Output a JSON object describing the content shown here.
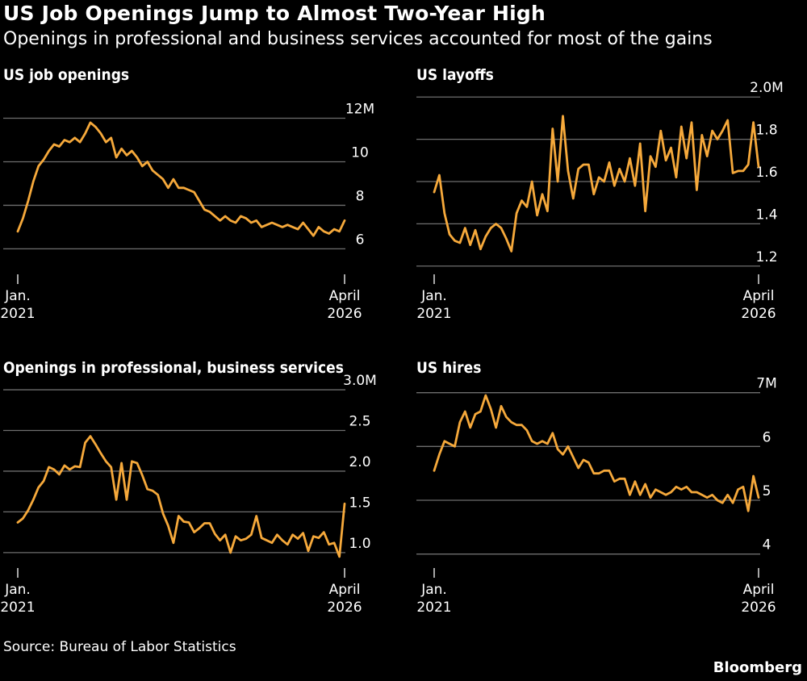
{
  "header": {
    "title": "US Job Openings Jump to Almost Two-Year High",
    "subtitle": "Openings in professional and business services accounted for most of the gains"
  },
  "footer": {
    "source": "Source: Bureau of Labor Statistics",
    "brand": "Bloomberg"
  },
  "colors": {
    "line": "#f6a93b",
    "grid": "#6e6e6e",
    "background": "#000000",
    "text": "#ffffff"
  },
  "chart_data": [
    {
      "type": "line",
      "title": "US job openings",
      "ylim": [
        5.2,
        12.5
      ],
      "yticks": [
        6,
        8,
        10,
        12
      ],
      "ytick_labels": [
        "6",
        "8",
        "10",
        "12M"
      ],
      "xtick_labels": [
        {
          "line1": "Jan.",
          "line2": "2021"
        },
        {
          "line1": "April",
          "line2": "2026"
        }
      ],
      "x_range": [
        "2021-01",
        "2026-04"
      ],
      "series": [
        {
          "values": [
            6.8,
            7.4,
            8.2,
            9.1,
            9.8,
            10.1,
            10.5,
            10.8,
            10.7,
            11.0,
            10.9,
            11.1,
            10.9,
            11.3,
            11.8,
            11.6,
            11.3,
            10.9,
            11.1,
            10.2,
            10.6,
            10.3,
            10.5,
            10.2,
            9.8,
            10.0,
            9.6,
            9.4,
            9.2,
            8.8,
            9.2,
            8.8,
            8.8,
            8.7,
            8.6,
            8.2,
            7.8,
            7.7,
            7.5,
            7.3,
            7.5,
            7.3,
            7.2,
            7.5,
            7.4,
            7.2,
            7.3,
            7.0,
            7.1,
            7.2,
            7.1,
            7.0,
            7.1,
            7.0,
            6.9,
            7.2,
            6.9,
            6.6,
            7.0,
            6.8,
            6.7,
            6.9,
            6.8,
            7.3
          ]
        }
      ]
    },
    {
      "type": "line",
      "title": "US layoffs",
      "ylim": [
        1.18,
        2.02
      ],
      "yticks": [
        1.2,
        1.4,
        1.6,
        1.8,
        2.0
      ],
      "ytick_labels": [
        "1.2",
        "1.4",
        "1.6",
        "1.8",
        "2.0M"
      ],
      "xtick_labels": [
        {
          "line1": "Jan.",
          "line2": "2021"
        },
        {
          "line1": "April",
          "line2": "2026"
        }
      ],
      "x_range": [
        "2021-01",
        "2026-04"
      ],
      "series": [
        {
          "values": [
            1.55,
            1.63,
            1.45,
            1.35,
            1.32,
            1.31,
            1.38,
            1.3,
            1.37,
            1.28,
            1.34,
            1.38,
            1.4,
            1.38,
            1.33,
            1.27,
            1.45,
            1.51,
            1.48,
            1.6,
            1.44,
            1.54,
            1.46,
            1.85,
            1.6,
            1.91,
            1.65,
            1.52,
            1.66,
            1.68,
            1.68,
            1.54,
            1.62,
            1.6,
            1.69,
            1.58,
            1.66,
            1.6,
            1.71,
            1.58,
            1.78,
            1.46,
            1.72,
            1.67,
            1.84,
            1.7,
            1.76,
            1.62,
            1.86,
            1.71,
            1.88,
            1.56,
            1.82,
            1.72,
            1.84,
            1.8,
            1.84,
            1.89,
            1.64,
            1.65,
            1.65,
            1.68,
            1.88,
            1.67
          ]
        }
      ]
    },
    {
      "type": "line",
      "title": "Openings in professional, business services",
      "ylim": [
        0.85,
        3.05
      ],
      "yticks": [
        1.0,
        1.5,
        2.0,
        2.5,
        3.0
      ],
      "ytick_labels": [
        "1.0",
        "1.5",
        "2.0",
        "2.5",
        "3.0M"
      ],
      "xtick_labels": [
        {
          "line1": "Jan.",
          "line2": "2021"
        },
        {
          "line1": "April",
          "line2": "2026"
        }
      ],
      "x_range": [
        "2021-01",
        "2026-04"
      ],
      "series": [
        {
          "values": [
            1.37,
            1.42,
            1.52,
            1.65,
            1.8,
            1.88,
            2.05,
            2.02,
            1.96,
            2.07,
            2.02,
            2.06,
            2.05,
            2.35,
            2.43,
            2.33,
            2.22,
            2.12,
            2.05,
            1.65,
            2.1,
            1.65,
            2.12,
            2.1,
            1.95,
            1.78,
            1.76,
            1.71,
            1.48,
            1.33,
            1.12,
            1.45,
            1.38,
            1.37,
            1.25,
            1.3,
            1.36,
            1.36,
            1.23,
            1.15,
            1.22,
            1.0,
            1.2,
            1.15,
            1.17,
            1.22,
            1.45,
            1.18,
            1.15,
            1.12,
            1.22,
            1.15,
            1.1,
            1.22,
            1.17,
            1.24,
            1.02,
            1.2,
            1.18,
            1.25,
            1.1,
            1.12,
            0.95,
            1.6
          ]
        }
      ]
    },
    {
      "type": "line",
      "title": "US hires",
      "ylim": [
        3.8,
        7.1
      ],
      "yticks": [
        4,
        5,
        6,
        7
      ],
      "ytick_labels": [
        "4",
        "5",
        "6",
        "7M"
      ],
      "xtick_labels": [
        {
          "line1": "Jan.",
          "line2": "2021"
        },
        {
          "line1": "April",
          "line2": "2026"
        }
      ],
      "x_range": [
        "2021-01",
        "2026-04"
      ],
      "series": [
        {
          "values": [
            5.55,
            5.85,
            6.1,
            6.05,
            6.0,
            6.45,
            6.65,
            6.35,
            6.6,
            6.65,
            6.95,
            6.7,
            6.35,
            6.75,
            6.55,
            6.45,
            6.4,
            6.4,
            6.3,
            6.1,
            6.05,
            6.1,
            6.05,
            6.25,
            5.95,
            5.85,
            6.0,
            5.8,
            5.6,
            5.75,
            5.7,
            5.5,
            5.5,
            5.55,
            5.55,
            5.35,
            5.4,
            5.4,
            5.1,
            5.35,
            5.1,
            5.3,
            5.05,
            5.2,
            5.15,
            5.1,
            5.15,
            5.25,
            5.2,
            5.25,
            5.15,
            5.15,
            5.1,
            5.05,
            5.1,
            5.0,
            4.95,
            5.1,
            4.95,
            5.2,
            5.25,
            4.8,
            5.45,
            5.05
          ]
        }
      ]
    }
  ]
}
